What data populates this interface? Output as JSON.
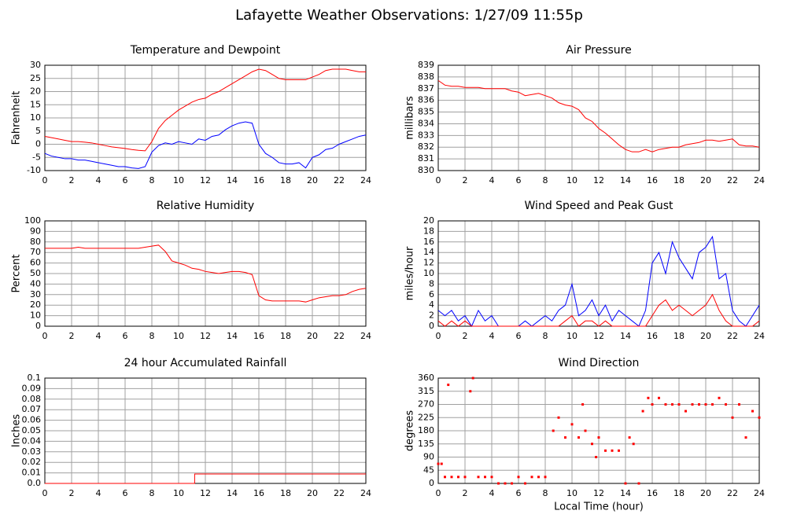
{
  "title": "Lafayette Weather Observations: 1/27/09 11:55p",
  "chart_data": [
    {
      "type": "line",
      "title": "Temperature and Dewpoint",
      "ylabel": "Fahrenheit",
      "x": [
        0,
        0.5,
        1,
        1.5,
        2,
        2.5,
        3,
        3.5,
        4,
        4.5,
        5,
        5.5,
        6,
        6.5,
        7,
        7.5,
        8,
        8.5,
        9,
        9.5,
        10,
        10.5,
        11,
        11.5,
        12,
        12.5,
        13,
        13.5,
        14,
        14.5,
        15,
        15.5,
        16,
        16.5,
        17,
        17.5,
        18,
        18.5,
        19,
        19.5,
        20,
        20.5,
        21,
        21.5,
        22,
        22.5,
        23,
        23.5,
        24
      ],
      "series": [
        {
          "color": "#ff0000",
          "values": [
            3,
            2.5,
            2,
            1.5,
            1,
            1,
            0.8,
            0.5,
            0,
            -0.5,
            -1,
            -1.3,
            -1.6,
            -2,
            -2.3,
            -2.5,
            1,
            6,
            9,
            11,
            13,
            14.5,
            16,
            17,
            17.5,
            19,
            20,
            21.5,
            23,
            24.5,
            26,
            27.5,
            28.5,
            28,
            26.5,
            25,
            24.5,
            24.5,
            24.5,
            24.5,
            25.5,
            26.5,
            28,
            28.5,
            28.5,
            28.5,
            28,
            27.5,
            27.5
          ]
        },
        {
          "color": "#0000ff",
          "values": [
            -3.5,
            -4.5,
            -5,
            -5.5,
            -5.5,
            -6,
            -6,
            -6.5,
            -7,
            -7.5,
            -8,
            -8.5,
            -8.5,
            -9,
            -9.2,
            -8.5,
            -3,
            -0.5,
            0.5,
            0,
            1,
            0.5,
            0,
            2,
            1.5,
            3,
            3.5,
            5.5,
            7,
            8,
            8.5,
            8,
            0,
            -3.5,
            -5,
            -7,
            -7.5,
            -7.5,
            -7,
            -9,
            -5,
            -4,
            -2,
            -1.5,
            0,
            1,
            2,
            3,
            3.5
          ]
        }
      ],
      "xlim": [
        0,
        24
      ],
      "xticks": [
        0,
        2,
        4,
        6,
        8,
        10,
        12,
        14,
        16,
        18,
        20,
        22,
        24
      ],
      "ylim": [
        -10,
        30
      ],
      "yticks": [
        -10,
        -5,
        0,
        5,
        10,
        15,
        20,
        25,
        30
      ],
      "grid": true
    },
    {
      "type": "line",
      "title": "Air Pressure",
      "ylabel": "millibars",
      "x": [
        0,
        0.5,
        1,
        1.5,
        2,
        2.5,
        3,
        3.5,
        4,
        4.5,
        5,
        5.5,
        6,
        6.5,
        7,
        7.5,
        8,
        8.5,
        9,
        9.5,
        10,
        10.5,
        11,
        11.5,
        12,
        12.5,
        13,
        13.5,
        14,
        14.5,
        15,
        15.5,
        16,
        16.5,
        17,
        17.5,
        18,
        18.5,
        19,
        19.5,
        20,
        20.5,
        21,
        21.5,
        22,
        22.5,
        23,
        23.5,
        24
      ],
      "series": [
        {
          "color": "#ff0000",
          "values": [
            837.7,
            837.3,
            837.2,
            837.2,
            837.1,
            837.1,
            837.1,
            837,
            837,
            837,
            837,
            836.8,
            836.7,
            836.4,
            836.5,
            836.6,
            836.4,
            836.2,
            835.8,
            835.6,
            835.5,
            835.2,
            834.5,
            834.2,
            833.6,
            833.2,
            832.7,
            832.2,
            831.8,
            831.6,
            831.6,
            831.8,
            831.6,
            831.8,
            831.9,
            832,
            832,
            832.2,
            832.3,
            832.4,
            832.6,
            832.6,
            832.5,
            832.6,
            832.7,
            832.2,
            832.1,
            832.1,
            832
          ]
        }
      ],
      "xlim": [
        0,
        24
      ],
      "xticks": [
        0,
        2,
        4,
        6,
        8,
        10,
        12,
        14,
        16,
        18,
        20,
        22,
        24
      ],
      "ylim": [
        830,
        839
      ],
      "yticks": [
        830,
        831,
        832,
        833,
        834,
        835,
        836,
        837,
        838,
        839
      ],
      "grid": true
    },
    {
      "type": "line",
      "title": "Relative Humidity",
      "ylabel": "Percent",
      "x": [
        0,
        0.5,
        1,
        1.5,
        2,
        2.5,
        3,
        3.5,
        4,
        4.5,
        5,
        5.5,
        6,
        6.5,
        7,
        7.5,
        8,
        8.5,
        9,
        9.5,
        10,
        10.5,
        11,
        11.5,
        12,
        12.5,
        13,
        13.5,
        14,
        14.5,
        15,
        15.5,
        16,
        16.5,
        17,
        17.5,
        18,
        18.5,
        19,
        19.5,
        20,
        20.5,
        21,
        21.5,
        22,
        22.5,
        23,
        23.5,
        24
      ],
      "series": [
        {
          "color": "#ff0000",
          "values": [
            74,
            74,
            74,
            74,
            74,
            75,
            74,
            74,
            74,
            74,
            74,
            74,
            74,
            74,
            74,
            75,
            76,
            77,
            71,
            62,
            60,
            58,
            55,
            54,
            52,
            51,
            50,
            51,
            52,
            52,
            51,
            49,
            29,
            25,
            24,
            24,
            24,
            24,
            24,
            23,
            25,
            27,
            28,
            29,
            29,
            30,
            33,
            35,
            36
          ]
        }
      ],
      "xlim": [
        0,
        24
      ],
      "xticks": [
        0,
        2,
        4,
        6,
        8,
        10,
        12,
        14,
        16,
        18,
        20,
        22,
        24
      ],
      "ylim": [
        0,
        100
      ],
      "yticks": [
        0,
        10,
        20,
        30,
        40,
        50,
        60,
        70,
        80,
        90,
        100
      ],
      "grid": true
    },
    {
      "type": "line",
      "title": "Wind Speed and Peak Gust",
      "ylabel": "miles/hour",
      "x": [
        0,
        0.5,
        1,
        1.5,
        2,
        2.5,
        3,
        3.5,
        4,
        4.5,
        5,
        5.5,
        6,
        6.5,
        7,
        7.5,
        8,
        8.5,
        9,
        9.5,
        10,
        10.5,
        11,
        11.5,
        12,
        12.5,
        13,
        13.5,
        14,
        14.5,
        15,
        15.5,
        16,
        16.5,
        17,
        17.5,
        18,
        18.5,
        19,
        19.5,
        20,
        20.5,
        21,
        21.5,
        22,
        22.5,
        23,
        23.5,
        24
      ],
      "series": [
        {
          "color": "#0000ff",
          "values": [
            3,
            2,
            3,
            1,
            2,
            0,
            3,
            1,
            2,
            0,
            0,
            0,
            0,
            1,
            0,
            1,
            2,
            1,
            3,
            4,
            8,
            2,
            3,
            5,
            2,
            4,
            1,
            3,
            2,
            1,
            0,
            3,
            12,
            14,
            10,
            16,
            13,
            11,
            9,
            14,
            15,
            17,
            9,
            10,
            3,
            1,
            0,
            2,
            4
          ]
        },
        {
          "color": "#ff0000",
          "values": [
            1,
            0,
            1,
            0,
            1,
            0,
            0,
            0,
            0,
            0,
            0,
            0,
            0,
            0,
            0,
            0,
            0,
            0,
            0,
            1,
            2,
            0,
            1,
            1,
            0,
            1,
            0,
            0,
            0,
            0,
            0,
            0,
            2,
            4,
            5,
            3,
            4,
            3,
            2,
            3,
            4,
            6,
            3,
            1,
            0,
            0,
            0,
            0,
            1
          ]
        }
      ],
      "xlim": [
        0,
        24
      ],
      "xticks": [
        0,
        2,
        4,
        6,
        8,
        10,
        12,
        14,
        16,
        18,
        20,
        22,
        24
      ],
      "ylim": [
        0,
        20
      ],
      "yticks": [
        0,
        2,
        4,
        6,
        8,
        10,
        12,
        14,
        16,
        18,
        20
      ],
      "grid": true
    },
    {
      "type": "line",
      "title": "24 hour Accumulated Rainfall",
      "ylabel": "Inches",
      "x": [
        0,
        11.2,
        11.2,
        24
      ],
      "series": [
        {
          "color": "#ff0000",
          "values": [
            0,
            0,
            0.009,
            0.009
          ]
        }
      ],
      "xlim": [
        0,
        24
      ],
      "xticks": [
        0,
        2,
        4,
        6,
        8,
        10,
        12,
        14,
        16,
        18,
        20,
        22,
        24
      ],
      "ylim": [
        0,
        0.1
      ],
      "yticks": [
        {
          "value": 0,
          "label": "0.0"
        },
        0.01,
        0.02,
        0.03,
        0.04,
        0.05,
        0.06,
        0.07,
        0.08,
        0.09,
        0.1
      ],
      "grid": true
    },
    {
      "type": "scatter",
      "title": "Wind Direction",
      "ylabel": "degrees",
      "xlabel": "Local Time (hour)",
      "x": [
        0,
        0.25,
        0.5,
        0.75,
        1,
        1.5,
        2,
        2.4,
        2.6,
        3,
        3.5,
        4,
        4.5,
        5,
        5.5,
        6,
        6.5,
        7,
        7.5,
        8,
        8.6,
        9,
        9.5,
        10,
        10.5,
        10.8,
        11,
        11.5,
        11.8,
        12,
        12.5,
        13,
        13.5,
        14,
        14.3,
        14.6,
        15,
        15.3,
        15.7,
        16,
        16.5,
        17,
        17.5,
        18,
        18.5,
        19,
        19.5,
        20,
        20.5,
        21,
        21.5,
        22,
        22.5,
        23,
        23.5,
        24
      ],
      "series": [
        {
          "color": "#ff0000",
          "values": [
            67,
            67,
            22,
            337,
            22,
            22,
            22,
            315,
            360,
            22,
            22,
            22,
            0,
            0,
            0,
            22,
            0,
            22,
            22,
            22,
            180,
            225,
            157,
            202,
            157,
            270,
            180,
            135,
            90,
            157,
            112,
            112,
            112,
            0,
            157,
            135,
            0,
            247,
            292,
            270,
            292,
            270,
            270,
            270,
            247,
            270,
            270,
            270,
            270,
            292,
            270,
            225,
            270,
            157,
            247,
            225
          ]
        }
      ],
      "xlim": [
        0,
        24
      ],
      "xticks": [
        0,
        2,
        4,
        6,
        8,
        10,
        12,
        14,
        16,
        18,
        20,
        22,
        24
      ],
      "ylim": [
        0,
        360
      ],
      "yticks": [
        0,
        45,
        90,
        135,
        180,
        225,
        270,
        315,
        360
      ],
      "grid": true
    }
  ]
}
